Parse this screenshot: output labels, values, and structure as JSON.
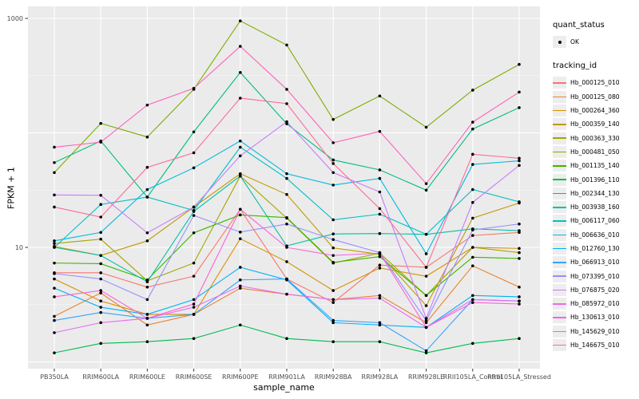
{
  "chart_data": {
    "type": "line",
    "title": "",
    "xlabel": "sample_name",
    "ylabel": "FPKM + 1",
    "y_scale": "log10",
    "ylim": [
      0.87,
      1270
    ],
    "y_ticks": [
      {
        "label": "1000",
        "value": 1000
      },
      {
        "label": "10",
        "value": 10
      }
    ],
    "y_gridlines_major": [
      1,
      10,
      100,
      1000
    ],
    "y_gridlines_minor": [
      3.162,
      31.62,
      316.2
    ],
    "grid": true,
    "panel_bg": "#EBEBEB",
    "grid_color": "#FFFFFF",
    "point_color": "#000000",
    "axis_text_color": "#4D4D4D",
    "categories": [
      "PB350LA",
      "RRIM600LA",
      "RRIM600LE",
      "RRIM600SE",
      "RRIM600PE",
      "RRIM901LA",
      "RRIM928BA",
      "RRIM928LA",
      "RRIM928LE",
      "RRII105LA_Control",
      "RRII105LA_Stressed"
    ],
    "series": [
      {
        "name": "Hb_000125_010",
        "color": "#F8766D",
        "values": [
          6.0,
          6.0,
          4.5,
          5.6,
          21.5,
          5.3,
          3.3,
          7.0,
          6.7,
          12.7,
          13.5
        ]
      },
      {
        "name": "Hb_000125_080",
        "color": "#EA8331",
        "values": [
          2.5,
          4.0,
          2.1,
          2.6,
          4.4,
          3.9,
          3.5,
          3.8,
          2.2,
          6.9,
          4.5
        ]
      },
      {
        "name": "Hb_000264_360",
        "color": "#D89000",
        "values": [
          5.3,
          3.4,
          2.6,
          2.6,
          11.9,
          7.5,
          4.2,
          6.6,
          5.6,
          10.0,
          9.8
        ]
      },
      {
        "name": "Hb_000359_140",
        "color": "#C09B00",
        "values": [
          10.2,
          8.5,
          11.4,
          22.5,
          44,
          29,
          9.9,
          8.7,
          3.1,
          18,
          24.4
        ]
      },
      {
        "name": "Hb_000363_330",
        "color": "#A3A500",
        "values": [
          10.8,
          11.8,
          5.1,
          7.3,
          42,
          18,
          7.3,
          8.9,
          3.8,
          10.0,
          9.0
        ]
      },
      {
        "name": "Hb_000481_050",
        "color": "#7CAE00",
        "values": [
          45,
          121,
          92,
          240,
          950,
          585,
          131,
          210,
          112,
          236,
          396
        ]
      },
      {
        "name": "Hb_001135_140",
        "color": "#39B600",
        "values": [
          7.3,
          7.2,
          5.2,
          13.4,
          19.2,
          18.2,
          7.4,
          8.3,
          3.8,
          8.2,
          8.0
        ]
      },
      {
        "name": "Hb_001396_110",
        "color": "#00BB4E",
        "values": [
          1.2,
          1.45,
          1.5,
          1.6,
          2.1,
          1.6,
          1.5,
          1.5,
          1.2,
          1.45,
          1.6
        ]
      },
      {
        "name": "Hb_002344_130",
        "color": "#00BF7D",
        "values": [
          55,
          85,
          27.5,
          102,
          337,
          120,
          58,
          47.5,
          31.6,
          108,
          166
        ]
      },
      {
        "name": "Hb_003938_160",
        "color": "#00C1A3",
        "values": [
          10,
          8.5,
          5.0,
          20.6,
          42,
          10.3,
          13.1,
          13.2,
          13.0,
          14.5,
          14.0
        ]
      },
      {
        "name": "Hb_006117_060",
        "color": "#00BFC4",
        "values": [
          10.0,
          23.7,
          27.5,
          21,
          75,
          40,
          17.4,
          19.5,
          13.0,
          32,
          25
        ]
      },
      {
        "name": "Hb_006636_010",
        "color": "#00BAE0",
        "values": [
          11.4,
          13.5,
          32,
          49.5,
          85,
          44,
          35,
          40,
          8.8,
          53,
          57
        ]
      },
      {
        "name": "Hb_012760_130",
        "color": "#00B0F6",
        "values": [
          4.4,
          3.0,
          2.6,
          3.5,
          6.7,
          5.2,
          2.2,
          2.1,
          2.0,
          3.8,
          3.7
        ]
      },
      {
        "name": "Hb_066913_010",
        "color": "#35A2FF",
        "values": [
          2.3,
          2.7,
          2.4,
          2.6,
          5.2,
          5.3,
          2.3,
          2.2,
          1.25,
          3.5,
          3.4
        ]
      },
      {
        "name": "Hb_073395_010",
        "color": "#9590FF",
        "values": [
          5.9,
          5.3,
          3.5,
          19,
          13.6,
          16,
          11.7,
          9.0,
          2.3,
          14.2,
          16
        ]
      },
      {
        "name": "Hb_076875_020",
        "color": "#C77CFF",
        "values": [
          28.7,
          28.5,
          13.4,
          22.5,
          63,
          125,
          45,
          30.5,
          2.4,
          24.7,
          52
        ]
      },
      {
        "name": "Hb_085972_010",
        "color": "#E76BF3",
        "values": [
          1.8,
          2.2,
          2.4,
          3.0,
          4.6,
          3.9,
          3.5,
          3.6,
          2.0,
          3.5,
          3.4
        ]
      },
      {
        "name": "Hb_130613_010",
        "color": "#FA62DB",
        "values": [
          3.7,
          4.2,
          2.4,
          3.2,
          21.5,
          10,
          8.5,
          8.9,
          2.0,
          3.3,
          3.2
        ]
      },
      {
        "name": "Hb_145629_010",
        "color": "#FF62BC",
        "values": [
          75,
          83,
          175,
          245,
          570,
          240,
          82,
          103,
          36,
          124,
          227
        ]
      },
      {
        "name": "Hb_146675_010",
        "color": "#FF6A98",
        "values": [
          22.5,
          18.4,
          50,
          67,
          201,
          180,
          54,
          21.8,
          6.7,
          65,
          60
        ]
      }
    ],
    "legend_position": "right"
  },
  "legend": {
    "quant_status": {
      "title": "quant_status",
      "items": [
        "OK"
      ]
    },
    "tracking_id": {
      "title": "tracking_id"
    }
  }
}
